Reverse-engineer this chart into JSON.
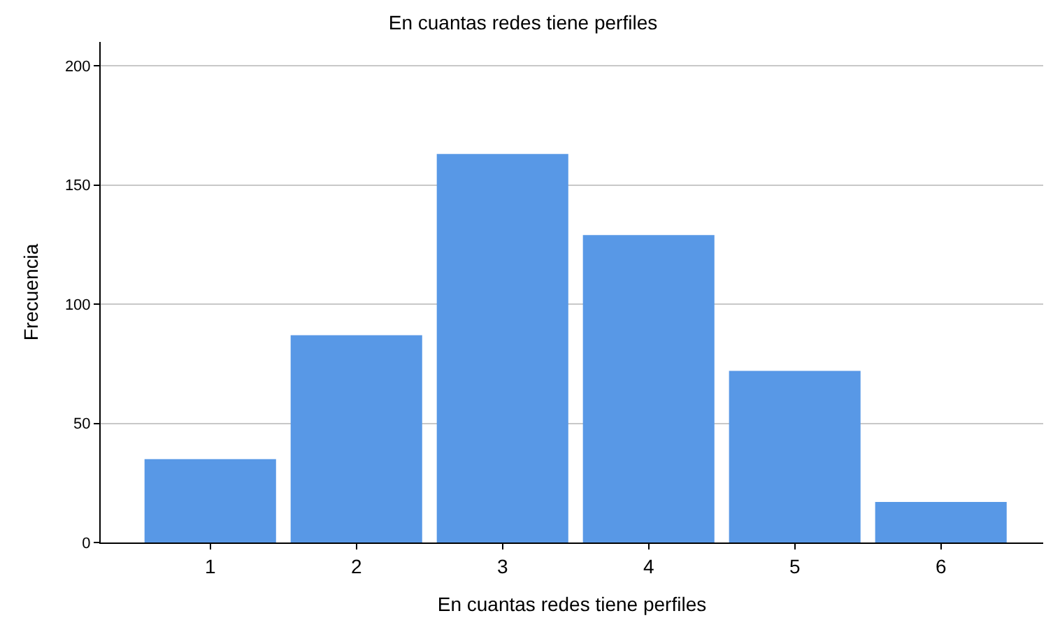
{
  "chart_data": {
    "type": "bar",
    "title": "En cuantas redes tiene perfiles",
    "xlabel": "En cuantas redes tiene perfiles",
    "ylabel": "Frecuencia",
    "categories": [
      "1",
      "2",
      "3",
      "4",
      "5",
      "6"
    ],
    "values": [
      35,
      87,
      163,
      129,
      72,
      17
    ],
    "color": "#5898e6",
    "ylim": [
      0,
      210
    ],
    "yticks": [
      0,
      50,
      100,
      150,
      200
    ],
    "grid": "y"
  }
}
